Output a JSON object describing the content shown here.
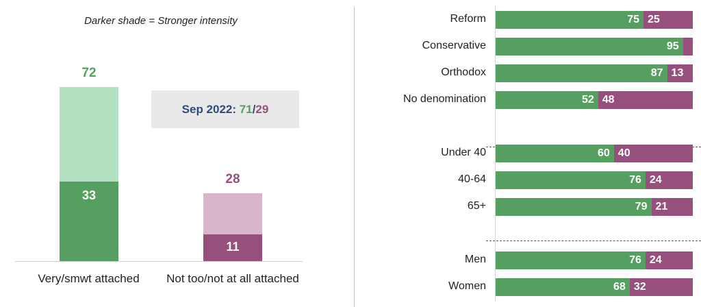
{
  "note": "Darker shade = Stronger intensity",
  "callout": {
    "prefix": "Sep 2022: ",
    "green_value": "71",
    "separator": "/",
    "purple_value": "29"
  },
  "colors": {
    "green_dark": "#55a061",
    "green_light": "#b2e0c0",
    "purple_dark": "#97507d",
    "purple_light": "#d8b6ca",
    "callout_blue": "#2f4b7c"
  },
  "chart_data": [
    {
      "type": "bar",
      "stacked": true,
      "categories": [
        "Very/smwt attached",
        "Not too/not at all attached"
      ],
      "series": [
        {
          "values": [
            33,
            11
          ]
        },
        {
          "values": [
            39,
            17
          ]
        }
      ],
      "totals": [
        72,
        28
      ]
    },
    {
      "type": "bar",
      "orientation": "horizontal",
      "stacked": true,
      "categories": [
        "Reform",
        "Conservative",
        "Orthodox",
        "No denomination",
        "Under 40",
        "40-64",
        "65+",
        "Men",
        "Women"
      ],
      "series": [
        {
          "values": [
            75,
            95,
            87,
            52,
            60,
            76,
            79,
            76,
            68
          ]
        },
        {
          "values": [
            25,
            5,
            13,
            48,
            40,
            24,
            21,
            24,
            32
          ]
        }
      ],
      "value_labels": [
        [
          "75",
          "25"
        ],
        [
          "95",
          ""
        ],
        [
          "87",
          "13"
        ],
        [
          "52",
          "48"
        ],
        [
          "60",
          "40"
        ],
        [
          "76",
          "24"
        ],
        [
          "79",
          "21"
        ],
        [
          "76",
          "24"
        ],
        [
          "68",
          "32"
        ]
      ],
      "groups": [
        [
          "Reform",
          "Conservative",
          "Orthodox",
          "No denomination"
        ],
        [
          "Under 40",
          "40-64",
          "65+"
        ],
        [
          "Men",
          "Women"
        ]
      ]
    }
  ]
}
